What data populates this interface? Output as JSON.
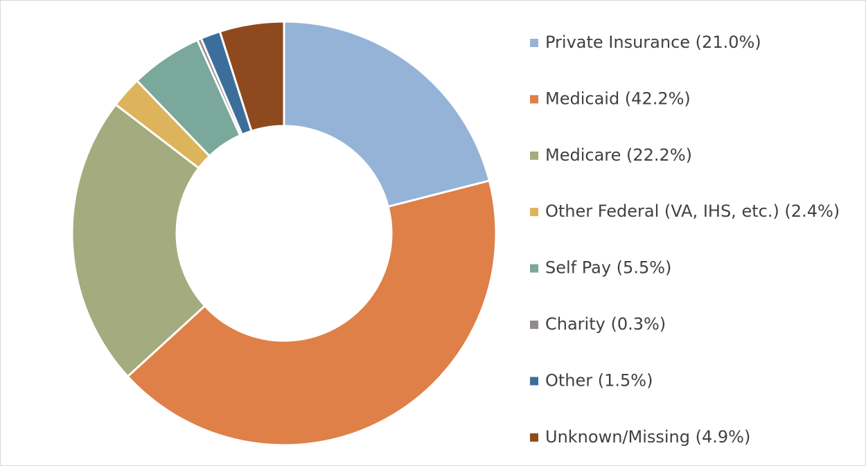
{
  "chart_data": {
    "type": "donut",
    "categories": [
      "Private Insurance (21.0%)",
      "Medicaid (42.2%)",
      "Medicare (22.2%)",
      "Other Federal (VA, IHS, etc.) (2.4%)",
      "Self Pay (5.5%)",
      "Charity (0.3%)",
      "Other (1.5%)",
      "Unknown/Missing (4.9%)"
    ],
    "values": [
      21.0,
      42.2,
      22.2,
      2.4,
      5.5,
      0.3,
      1.5,
      4.9
    ],
    "colors": [
      "#95b3d7",
      "#df8048",
      "#a4ab7e",
      "#ddb35c",
      "#7aa89a",
      "#948a8a",
      "#3c6e9b",
      "#8e4a1e"
    ],
    "legend": "right"
  }
}
